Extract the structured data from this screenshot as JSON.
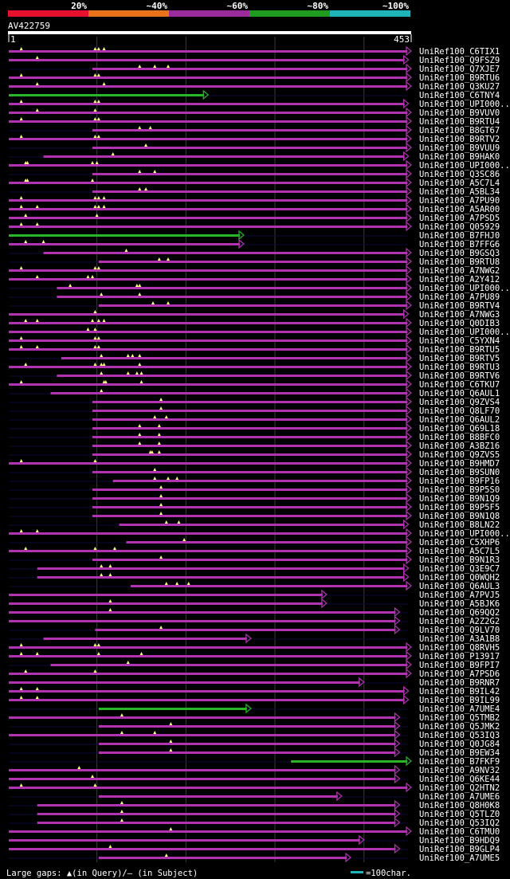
{
  "header": {
    "scale_labels": [
      "20%",
      "~40%",
      "~60%",
      "~80%",
      "~100%"
    ],
    "scale_colors": [
      "#e8102f",
      "#e8731a",
      "#9b2a9b",
      "#1f9b20",
      "#1fb5b8"
    ],
    "query_id": "AV422759",
    "ruler_start": "1",
    "ruler_end": "453"
  },
  "colors": {
    "hit": "#b233b2",
    "hit_line": "#9b2a9b",
    "green": "#27b627",
    "gap_marker": "#ffff80",
    "axis": "#2a2a2a"
  },
  "hits": [
    {
      "id": "UniRef100_C6TIX1",
      "s": 1,
      "e": 453,
      "c": "p",
      "m": [
        15,
        98,
        102,
        108
      ]
    },
    {
      "id": "UniRef100_Q9FSZ9",
      "s": 1,
      "e": 450,
      "c": "p",
      "m": [
        33
      ]
    },
    {
      "id": "UniRef100_Q7XJE7",
      "s": 95,
      "e": 453,
      "c": "p",
      "m": [
        148,
        165,
        180
      ]
    },
    {
      "id": "UniRef100_B9RTU6",
      "s": 1,
      "e": 453,
      "c": "p",
      "m": [
        15,
        98,
        102
      ]
    },
    {
      "id": "UniRef100_Q3KU27",
      "s": 1,
      "e": 453,
      "c": "p",
      "m": [
        33,
        108
      ]
    },
    {
      "id": "UniRef100_C6TNY4",
      "s": 1,
      "e": 225,
      "c": "g",
      "m": []
    },
    {
      "id": "UniRef100_UPI000...",
      "s": 1,
      "e": 450,
      "c": "p",
      "m": [
        15,
        98,
        102
      ]
    },
    {
      "id": "UniRef100_B9VUV0",
      "s": 1,
      "e": 453,
      "c": "p",
      "m": [
        33,
        98
      ]
    },
    {
      "id": "UniRef100_B9RTU4",
      "s": 1,
      "e": 453,
      "c": "p",
      "m": [
        15,
        98,
        102
      ]
    },
    {
      "id": "UniRef100_B8GT67",
      "s": 95,
      "e": 453,
      "c": "p",
      "m": [
        148,
        160
      ]
    },
    {
      "id": "UniRef100_B9RTV2",
      "s": 1,
      "e": 453,
      "c": "p",
      "m": [
        15,
        98,
        102
      ]
    },
    {
      "id": "UniRef100_B9VUU9",
      "s": 95,
      "e": 453,
      "c": "p",
      "m": [
        155
      ]
    },
    {
      "id": "UniRef100_B9HAK0",
      "s": 40,
      "e": 450,
      "c": "p",
      "m": [
        118
      ]
    },
    {
      "id": "UniRef100_UPI000...",
      "s": 1,
      "e": 453,
      "c": "p",
      "m": [
        20,
        22,
        95,
        100
      ]
    },
    {
      "id": "UniRef100_Q3SC86",
      "s": 95,
      "e": 453,
      "c": "p",
      "m": [
        148,
        165
      ]
    },
    {
      "id": "UniRef100_A5C7L4",
      "s": 1,
      "e": 453,
      "c": "p",
      "m": [
        20,
        22,
        95
      ]
    },
    {
      "id": "UniRef100_A5BL34",
      "s": 95,
      "e": 453,
      "c": "p",
      "m": [
        148,
        155
      ]
    },
    {
      "id": "UniRef100_A7PU90",
      "s": 1,
      "e": 453,
      "c": "p",
      "m": [
        15,
        98,
        102,
        108
      ]
    },
    {
      "id": "UniRef100_A5AR00",
      "s": 1,
      "e": 453,
      "c": "p",
      "m": [
        15,
        33,
        98,
        102,
        108
      ]
    },
    {
      "id": "UniRef100_A7PSD5",
      "s": 1,
      "e": 453,
      "c": "p",
      "m": [
        20,
        100
      ]
    },
    {
      "id": "UniRef100_Q05929",
      "s": 1,
      "e": 453,
      "c": "p",
      "m": [
        15,
        33
      ]
    },
    {
      "id": "UniRef100_B7FHJ0",
      "s": 1,
      "e": 265,
      "c": "g",
      "m": []
    },
    {
      "id": "UniRef100_B7FFG6",
      "s": 1,
      "e": 265,
      "c": "p",
      "m": [
        20,
        40
      ]
    },
    {
      "id": "UniRef100_B9GSQ3",
      "s": 40,
      "e": 453,
      "c": "p",
      "m": [
        133
      ]
    },
    {
      "id": "UniRef100_B9RTU8",
      "s": 102,
      "e": 453,
      "c": "p",
      "m": [
        170,
        180
      ]
    },
    {
      "id": "UniRef100_A7NWG2",
      "s": 1,
      "e": 453,
      "c": "p",
      "m": [
        15,
        98,
        102
      ]
    },
    {
      "id": "UniRef100_A2Y412",
      "s": 1,
      "e": 453,
      "c": "p",
      "m": [
        33,
        90,
        95
      ]
    },
    {
      "id": "UniRef100_UPI000...",
      "s": 55,
      "e": 453,
      "c": "p",
      "m": [
        70,
        145,
        148
      ]
    },
    {
      "id": "UniRef100_A7PU89",
      "s": 55,
      "e": 453,
      "c": "p",
      "m": [
        105,
        148
      ]
    },
    {
      "id": "UniRef100_B9RTV4",
      "s": 102,
      "e": 453,
      "c": "p",
      "m": [
        163,
        180
      ]
    },
    {
      "id": "UniRef100_A7NWG3",
      "s": 1,
      "e": 450,
      "c": "p",
      "m": [
        98
      ]
    },
    {
      "id": "UniRef100_Q0DIB3",
      "s": 1,
      "e": 453,
      "c": "p",
      "m": [
        20,
        33,
        95,
        102,
        108
      ]
    },
    {
      "id": "UniRef100_UPI000...",
      "s": 1,
      "e": 453,
      "c": "p",
      "m": [
        90,
        98
      ]
    },
    {
      "id": "UniRef100_C5YXN4",
      "s": 1,
      "e": 453,
      "c": "p",
      "m": [
        15,
        98,
        102
      ]
    },
    {
      "id": "UniRef100_B9RTU5",
      "s": 1,
      "e": 453,
      "c": "p",
      "m": [
        15,
        33,
        98,
        102
      ]
    },
    {
      "id": "UniRef100_B9RTV5",
      "s": 60,
      "e": 453,
      "c": "p",
      "m": [
        105,
        135,
        140,
        148
      ]
    },
    {
      "id": "UniRef100_B9RTU3",
      "s": 1,
      "e": 453,
      "c": "p",
      "m": [
        20,
        98,
        105,
        108,
        148
      ]
    },
    {
      "id": "UniRef100_B9RTV6",
      "s": 55,
      "e": 453,
      "c": "p",
      "m": [
        105,
        135,
        145,
        150
      ]
    },
    {
      "id": "UniRef100_C6TKU7",
      "s": 1,
      "e": 453,
      "c": "p",
      "m": [
        15,
        108,
        110,
        150
      ]
    },
    {
      "id": "UniRef100_Q6AUL1",
      "s": 48,
      "e": 453,
      "c": "p",
      "m": [
        105
      ]
    },
    {
      "id": "UniRef100_Q9ZVS4",
      "s": 95,
      "e": 453,
      "c": "p",
      "m": [
        172
      ]
    },
    {
      "id": "UniRef100_Q8LF70",
      "s": 95,
      "e": 453,
      "c": "p",
      "m": [
        172
      ]
    },
    {
      "id": "UniRef100_Q6AUL2",
      "s": 95,
      "e": 453,
      "c": "p",
      "m": [
        165,
        178
      ]
    },
    {
      "id": "UniRef100_Q69L18",
      "s": 95,
      "e": 453,
      "c": "p",
      "m": [
        148,
        170
      ]
    },
    {
      "id": "UniRef100_B8BFC0",
      "s": 95,
      "e": 453,
      "c": "p",
      "m": [
        148,
        170
      ]
    },
    {
      "id": "UniRef100_A3BZ16",
      "s": 95,
      "e": 453,
      "c": "p",
      "m": [
        148,
        170
      ]
    },
    {
      "id": "UniRef100_Q9ZVS5",
      "s": 95,
      "e": 453,
      "c": "p",
      "m": [
        160,
        162,
        170
      ]
    },
    {
      "id": "UniRef100_B9HMD7",
      "s": 1,
      "e": 453,
      "c": "p",
      "m": [
        15,
        98
      ]
    },
    {
      "id": "UniRef100_B9SUN0",
      "s": 95,
      "e": 453,
      "c": "p",
      "m": [
        165
      ]
    },
    {
      "id": "UniRef100_B9FP16",
      "s": 118,
      "e": 453,
      "c": "p",
      "m": [
        165,
        180,
        190
      ]
    },
    {
      "id": "UniRef100_B9P5S0",
      "s": 95,
      "e": 453,
      "c": "p",
      "m": [
        172
      ]
    },
    {
      "id": "UniRef100_B9N1Q9",
      "s": 95,
      "e": 453,
      "c": "p",
      "m": [
        172
      ]
    },
    {
      "id": "UniRef100_B9P5F5",
      "s": 95,
      "e": 453,
      "c": "p",
      "m": [
        172
      ]
    },
    {
      "id": "UniRef100_B9N1Q8",
      "s": 95,
      "e": 453,
      "c": "p",
      "m": [
        172
      ]
    },
    {
      "id": "UniRef100_B8LN22",
      "s": 125,
      "e": 450,
      "c": "p",
      "m": [
        178,
        192
      ]
    },
    {
      "id": "UniRef100_UPI000...",
      "s": 1,
      "e": 453,
      "c": "p",
      "m": [
        15,
        33
      ]
    },
    {
      "id": "UniRef100_C5XHP6",
      "s": 133,
      "e": 453,
      "c": "p",
      "m": [
        198
      ]
    },
    {
      "id": "UniRef100_A5C7L5",
      "s": 1,
      "e": 453,
      "c": "p",
      "m": [
        20,
        98,
        120
      ]
    },
    {
      "id": "UniRef100_B9N1R3",
      "s": 95,
      "e": 453,
      "c": "p",
      "m": [
        172
      ]
    },
    {
      "id": "UniRef100_Q3E9C7",
      "s": 33,
      "e": 450,
      "c": "p",
      "m": [
        105,
        115
      ]
    },
    {
      "id": "UniRef100_Q0WQH2",
      "s": 33,
      "e": 450,
      "c": "p",
      "m": [
        105,
        115
      ]
    },
    {
      "id": "UniRef100_Q6AUL3",
      "s": 138,
      "e": 453,
      "c": "p",
      "m": [
        178,
        190,
        203
      ]
    },
    {
      "id": "UniRef100_A7PVJ5",
      "s": 1,
      "e": 358,
      "c": "p",
      "m": []
    },
    {
      "id": "UniRef100_A5BJK6",
      "s": 1,
      "e": 358,
      "c": "p",
      "m": [
        115
      ]
    },
    {
      "id": "UniRef100_Q69QQ2",
      "s": 1,
      "e": 440,
      "c": "p",
      "m": [
        115
      ]
    },
    {
      "id": "UniRef100_A2Z2G2",
      "s": 1,
      "e": 440,
      "c": "p",
      "m": []
    },
    {
      "id": "UniRef100_Q9LV70",
      "s": 98,
      "e": 440,
      "c": "p",
      "m": [
        172
      ]
    },
    {
      "id": "UniRef100_A3A1B8",
      "s": 40,
      "e": 273,
      "c": "p",
      "m": []
    },
    {
      "id": "UniRef100_Q8RVH5",
      "s": 1,
      "e": 453,
      "c": "p",
      "m": [
        15,
        98,
        102
      ]
    },
    {
      "id": "UniRef100_P13917",
      "s": 1,
      "e": 453,
      "c": "p",
      "m": [
        15,
        33,
        102,
        150
      ]
    },
    {
      "id": "UniRef100_B9FPI7",
      "s": 48,
      "e": 453,
      "c": "p",
      "m": [
        135
      ]
    },
    {
      "id": "UniRef100_A7PSD6",
      "s": 1,
      "e": 453,
      "c": "p",
      "m": [
        20,
        98
      ]
    },
    {
      "id": "UniRef100_B9RNR7",
      "s": 1,
      "e": 400,
      "c": "p",
      "m": []
    },
    {
      "id": "UniRef100_B9IL42",
      "s": 1,
      "e": 450,
      "c": "p",
      "m": [
        15,
        33
      ]
    },
    {
      "id": "UniRef100_B9IL99",
      "s": 1,
      "e": 450,
      "c": "p",
      "m": [
        15,
        33
      ]
    },
    {
      "id": "UniRef100_A7UME4",
      "s": 102,
      "e": 273,
      "c": "g",
      "m": []
    },
    {
      "id": "UniRef100_Q5TMB2",
      "s": 1,
      "e": 440,
      "c": "p",
      "m": [
        128
      ]
    },
    {
      "id": "UniRef100_Q5JMK2",
      "s": 102,
      "e": 440,
      "c": "p",
      "m": [
        183
      ]
    },
    {
      "id": "UniRef100_Q53IQ3",
      "s": 1,
      "e": 440,
      "c": "p",
      "m": [
        128,
        165
      ]
    },
    {
      "id": "UniRef100_Q0JG84",
      "s": 102,
      "e": 440,
      "c": "p",
      "m": [
        183
      ]
    },
    {
      "id": "UniRef100_B9EW34",
      "s": 102,
      "e": 440,
      "c": "p",
      "m": [
        183
      ]
    },
    {
      "id": "UniRef100_B7FKF9",
      "s": 318,
      "e": 453,
      "c": "g",
      "m": []
    },
    {
      "id": "UniRef100_A9NV32",
      "s": 1,
      "e": 440,
      "c": "p",
      "m": [
        80
      ]
    },
    {
      "id": "UniRef100_Q6KE44",
      "s": 1,
      "e": 440,
      "c": "p",
      "m": [
        95
      ]
    },
    {
      "id": "UniRef100_Q2HTN2",
      "s": 1,
      "e": 453,
      "c": "p",
      "m": [
        15,
        98
      ]
    },
    {
      "id": "UniRef100_A7UME6",
      "s": 102,
      "e": 375,
      "c": "p",
      "m": []
    },
    {
      "id": "UniRef100_Q8H0K8",
      "s": 33,
      "e": 440,
      "c": "p",
      "m": [
        128
      ]
    },
    {
      "id": "UniRef100_Q5TLZ0",
      "s": 33,
      "e": 440,
      "c": "p",
      "m": [
        128
      ]
    },
    {
      "id": "UniRef100_Q53IQ2",
      "s": 33,
      "e": 440,
      "c": "p",
      "m": [
        128
      ]
    },
    {
      "id": "UniRef100_C6TMU0",
      "s": 1,
      "e": 453,
      "c": "p",
      "m": [
        183
      ]
    },
    {
      "id": "UniRef100_B9HDQ9",
      "s": 1,
      "e": 400,
      "c": "p",
      "m": []
    },
    {
      "id": "UniRef100_B9GLP4",
      "s": 1,
      "e": 440,
      "c": "p",
      "m": [
        115
      ]
    },
    {
      "id": "UniRef100_A7UME5",
      "s": 102,
      "e": 385,
      "c": "p",
      "m": [
        178
      ]
    }
  ],
  "footer": {
    "legend_text": "Large gaps: ▲(in Query)/– (in Subject)",
    "scale_text": "=100char."
  }
}
